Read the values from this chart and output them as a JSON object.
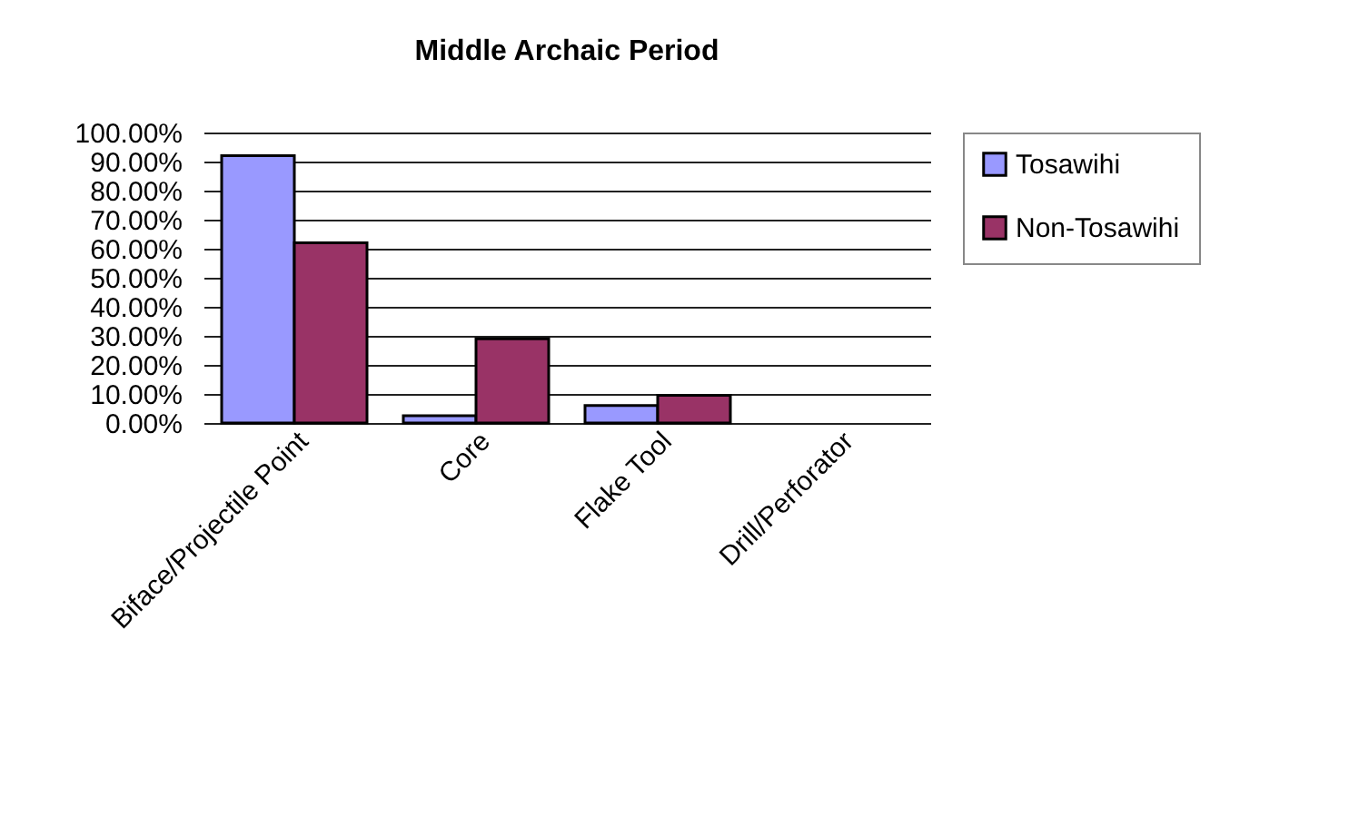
{
  "chart_data": {
    "type": "bar",
    "title": "Middle Archaic Period",
    "categories": [
      "Biface/Projectile Point",
      "Core",
      "Flake Tool",
      "Drill/Perforator"
    ],
    "series": [
      {
        "name": "Tosawihi",
        "color": "#9999ff",
        "values": [
          92,
          2.5,
          6,
          0
        ]
      },
      {
        "name": "Non-Tosawihi",
        "color": "#993366",
        "values": [
          62,
          29,
          9.5,
          0
        ]
      }
    ],
    "ylim": [
      0,
      100
    ],
    "yticks": [
      {
        "value": 0,
        "label": "0.00%"
      },
      {
        "value": 10,
        "label": "10.00%"
      },
      {
        "value": 20,
        "label": "20.00%"
      },
      {
        "value": 30,
        "label": "30.00%"
      },
      {
        "value": 40,
        "label": "40.00%"
      },
      {
        "value": 50,
        "label": "50.00%"
      },
      {
        "value": 60,
        "label": "60.00%"
      },
      {
        "value": 70,
        "label": "70.00%"
      },
      {
        "value": 80,
        "label": "80.00%"
      },
      {
        "value": 90,
        "label": "90.00%"
      },
      {
        "value": 100,
        "label": "100.00%"
      }
    ],
    "grid": "y",
    "legend": "right"
  }
}
